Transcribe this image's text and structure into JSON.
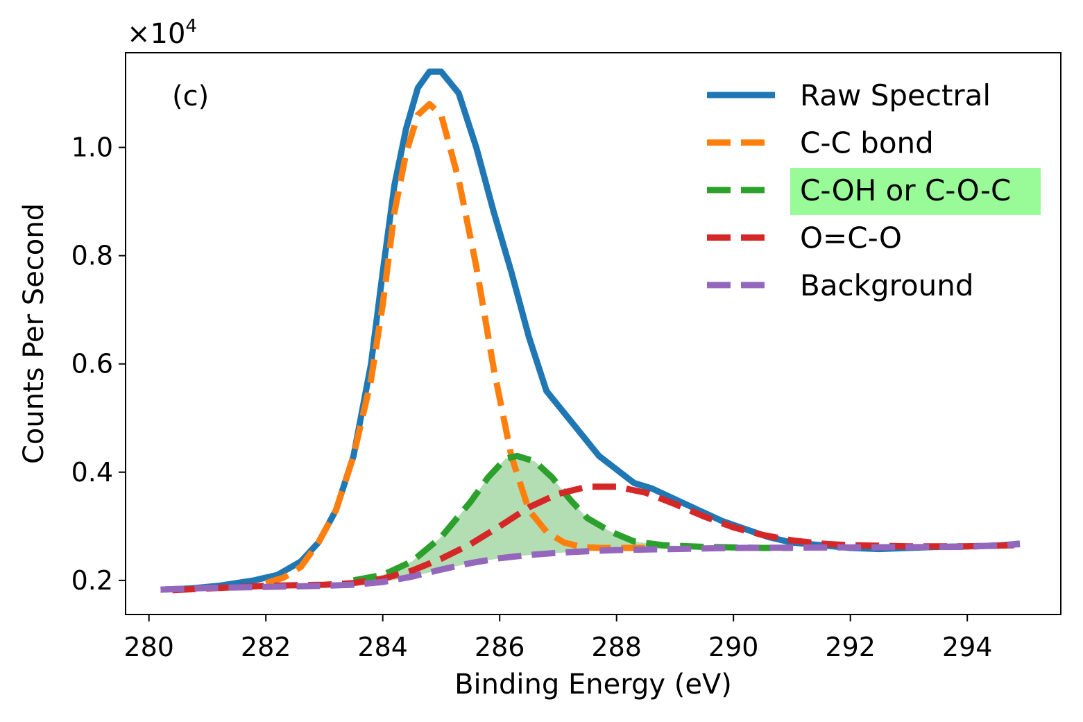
{
  "chart_data": {
    "type": "line",
    "panel_label": "(c)",
    "xlabel": "Binding Energy (eV)",
    "ylabel": "Counts Per Second",
    "y_multiplier_base": "×10",
    "y_multiplier_exp": "4",
    "xlim": [
      279.6,
      295.6
    ],
    "ylim": [
      0.137,
      1.175
    ],
    "xticks": [
      280,
      282,
      284,
      286,
      288,
      290,
      292,
      294
    ],
    "yticks": [
      0.2,
      0.4,
      0.6,
      0.8,
      1.0
    ],
    "ytick_labels": [
      "0.2",
      "0.4",
      "0.6",
      "0.8",
      "1.0"
    ],
    "legend_position": "top-right",
    "highlighted_legend_entry": "C-OH or C-O-C",
    "highlight_color": "#98fb98",
    "fill_under_series": "C-OH or C-O-C",
    "fill_color": "#2ca02c",
    "series": [
      {
        "name": "Raw Spectral",
        "color": "#1f77b4",
        "style": "solid",
        "x": [
          280.2,
          280.7,
          281.2,
          281.5,
          281.8,
          282.2,
          282.6,
          282.9,
          283.2,
          283.5,
          283.8,
          284.0,
          284.2,
          284.4,
          284.6,
          284.8,
          285.0,
          285.3,
          285.6,
          285.9,
          286.2,
          286.5,
          286.8,
          287.1,
          287.4,
          287.7,
          288.0,
          288.3,
          288.6,
          289.0,
          289.4,
          289.8,
          290.2,
          290.6,
          291.0,
          291.5,
          292.0,
          292.5,
          293.0,
          293.5,
          294.0,
          294.5,
          294.9
        ],
        "y": [
          0.183,
          0.185,
          0.19,
          0.195,
          0.2,
          0.21,
          0.235,
          0.27,
          0.33,
          0.43,
          0.6,
          0.77,
          0.93,
          1.035,
          1.11,
          1.14,
          1.14,
          1.1,
          1.0,
          0.88,
          0.77,
          0.65,
          0.55,
          0.51,
          0.47,
          0.43,
          0.405,
          0.38,
          0.37,
          0.35,
          0.33,
          0.31,
          0.295,
          0.28,
          0.27,
          0.265,
          0.26,
          0.258,
          0.26,
          0.262,
          0.263,
          0.264,
          0.268
        ]
      },
      {
        "name": "C-C bond",
        "color": "#ff7f0e",
        "style": "dashed",
        "x": [
          282.0,
          282.3,
          282.6,
          282.9,
          283.2,
          283.5,
          283.8,
          284.0,
          284.2,
          284.4,
          284.6,
          284.8,
          285.0,
          285.3,
          285.6,
          285.9,
          286.2,
          286.5,
          286.8,
          287.1,
          287.4,
          287.7,
          288.0,
          288.5
        ],
        "y": [
          0.195,
          0.205,
          0.225,
          0.27,
          0.33,
          0.43,
          0.57,
          0.71,
          0.88,
          0.99,
          1.06,
          1.08,
          1.06,
          0.94,
          0.78,
          0.59,
          0.43,
          0.33,
          0.29,
          0.27,
          0.262,
          0.26,
          0.26,
          0.26
        ]
      },
      {
        "name": "C-OH or C-O-C",
        "color": "#2ca02c",
        "style": "dashed",
        "x": [
          283.5,
          284.0,
          284.5,
          285.0,
          285.5,
          285.8,
          286.1,
          286.3,
          286.6,
          286.9,
          287.2,
          287.5,
          287.9,
          288.3,
          288.8,
          289.5,
          290.5,
          291.0
        ],
        "y": [
          0.2,
          0.21,
          0.235,
          0.28,
          0.345,
          0.39,
          0.425,
          0.43,
          0.42,
          0.39,
          0.35,
          0.315,
          0.29,
          0.272,
          0.265,
          0.262,
          0.26,
          0.26
        ]
      },
      {
        "name": "O=C-O",
        "color": "#d62728",
        "style": "dashed",
        "x": [
          280.4,
          281.0,
          282.0,
          283.0,
          283.5,
          284.0,
          284.5,
          285.0,
          285.5,
          286.0,
          286.5,
          287.0,
          287.5,
          288.0,
          288.5,
          289.0,
          289.5,
          290.0,
          290.5,
          291.0,
          291.5,
          292.0,
          293.0,
          294.0,
          294.8
        ],
        "y": [
          0.182,
          0.185,
          0.19,
          0.192,
          0.195,
          0.203,
          0.218,
          0.24,
          0.267,
          0.3,
          0.335,
          0.36,
          0.373,
          0.373,
          0.362,
          0.341,
          0.318,
          0.298,
          0.284,
          0.274,
          0.268,
          0.265,
          0.263,
          0.263,
          0.265
        ]
      },
      {
        "name": "Background",
        "color": "#9467bd",
        "style": "dashed",
        "x": [
          280.2,
          281.0,
          282.0,
          283.0,
          283.5,
          284.0,
          284.5,
          285.0,
          285.5,
          286.0,
          286.5,
          287.0,
          287.5,
          288.0,
          289.0,
          290.0,
          292.0,
          294.0,
          294.9
        ],
        "y": [
          0.183,
          0.186,
          0.188,
          0.19,
          0.192,
          0.197,
          0.207,
          0.22,
          0.232,
          0.241,
          0.247,
          0.251,
          0.254,
          0.256,
          0.258,
          0.26,
          0.261,
          0.262,
          0.267
        ]
      }
    ]
  }
}
